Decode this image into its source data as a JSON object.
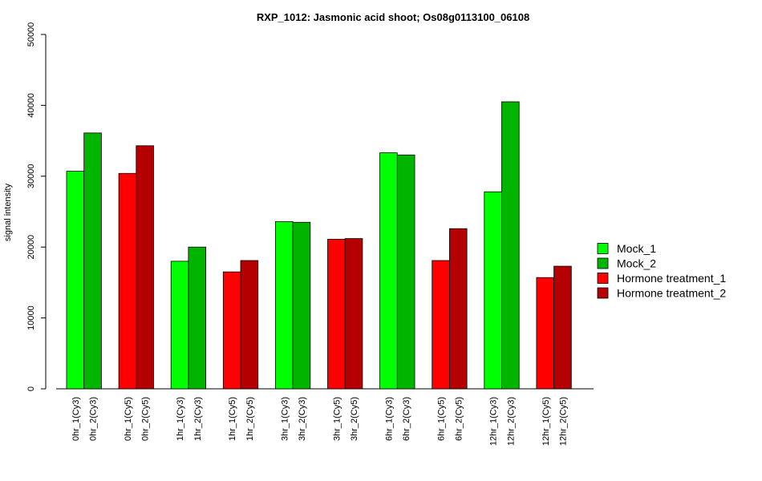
{
  "chart_data": {
    "type": "bar",
    "title": "RXP_1012: Jasmonic acid shoot; Os08g0113100_06108",
    "ylabel": "signal intensity",
    "xlabel": "",
    "ylim": [
      0,
      50000
    ],
    "yticks": [
      0,
      10000,
      20000,
      30000,
      40000,
      50000
    ],
    "categories": [
      "0hr_1(Cy3)",
      "0hr_2(Cy3)",
      "0hr_1(Cy5)",
      "0hr_2(Cy5)",
      "1hr_1(Cy3)",
      "1hr_2(Cy3)",
      "1hr_1(Cy5)",
      "1hr_2(Cy5)",
      "3hr_1(Cy3)",
      "3hr_2(Cy3)",
      "3hr_1(Cy5)",
      "3hr_2(Cy5)",
      "6hr_1(Cy3)",
      "6hr_2(Cy3)",
      "6hr_1(Cy5)",
      "6hr_2(Cy5)",
      "12hr_1(Cy3)",
      "12hr_2(Cy3)",
      "12hr_1(Cy5)",
      "12hr_2(Cy5)"
    ],
    "values": [
      30700,
      36100,
      30400,
      34300,
      18000,
      20000,
      16500,
      18100,
      23600,
      23500,
      21100,
      21200,
      33300,
      33000,
      18100,
      22600,
      27800,
      40500,
      15700,
      17300
    ],
    "bar_series": [
      0,
      1,
      2,
      3,
      0,
      1,
      2,
      3,
      0,
      1,
      2,
      3,
      0,
      1,
      2,
      3,
      0,
      1,
      2,
      3
    ],
    "series": [
      {
        "name": "Mock_1",
        "color": "#00ff00"
      },
      {
        "name": "Mock_2",
        "color": "#00b400"
      },
      {
        "name": "Hormone treatment_1",
        "color": "#ff0000"
      },
      {
        "name": "Hormone treatment_2",
        "color": "#b40000"
      }
    ],
    "grid": false,
    "legend_position": "right"
  }
}
